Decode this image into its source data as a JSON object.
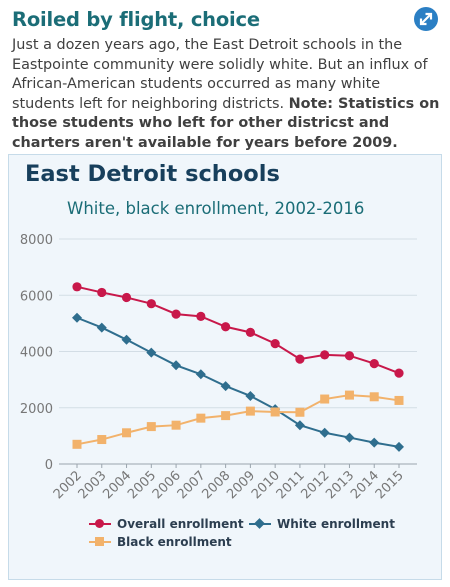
{
  "header": {
    "headline": "Roiled by flight, choice",
    "chatter_text": "Just a dozen years ago, the East Detroit schools in the Eastpointe community were solidly white. But an influx of African-American students occurred as many white students left for neighboring districts.",
    "chatter_note": "Note: Statistics on those students who left for other districst and charters aren't available for years before 2009.",
    "expand_icon": "diagonal-arrows-icon"
  },
  "colors": {
    "headline": "#1b6d77",
    "overall": "#c8184a",
    "white": "#2f6e8e",
    "black": "#f2b26b",
    "panel_bg": "#f0f6fb"
  },
  "chart_data": {
    "type": "line",
    "title": "East Detroit schools",
    "subtitle": "White, black enrollment, 2002-2016",
    "xlabel": "",
    "ylabel": "",
    "categories": [
      "2002",
      "2003",
      "2004",
      "2005",
      "2006",
      "2007",
      "2008",
      "2009",
      "2010",
      "2011",
      "2012",
      "2013",
      "2014",
      "2015"
    ],
    "ylim": [
      0,
      8000
    ],
    "yticks": [
      "0",
      "2000",
      "4000",
      "6000",
      "8000"
    ],
    "grid": true,
    "legend_position": "bottom",
    "series": [
      {
        "name": "Overall enrollment",
        "marker": "circle",
        "color": "#c8184a",
        "values": [
          6300,
          6100,
          5920,
          5700,
          5330,
          5250,
          4880,
          4680,
          4280,
          3730,
          3880,
          3850,
          3570,
          3230
        ]
      },
      {
        "name": "White enrollment",
        "marker": "diamond",
        "color": "#2f6e8e",
        "values": [
          5200,
          4850,
          4420,
          3960,
          3510,
          3190,
          2770,
          2420,
          1950,
          1380,
          1110,
          940,
          760,
          610
        ]
      },
      {
        "name": "Black enrollment",
        "marker": "square",
        "color": "#f2b26b",
        "values": [
          700,
          870,
          1110,
          1330,
          1380,
          1630,
          1720,
          1880,
          1850,
          1840,
          2310,
          2450,
          2390,
          2260
        ]
      }
    ]
  }
}
